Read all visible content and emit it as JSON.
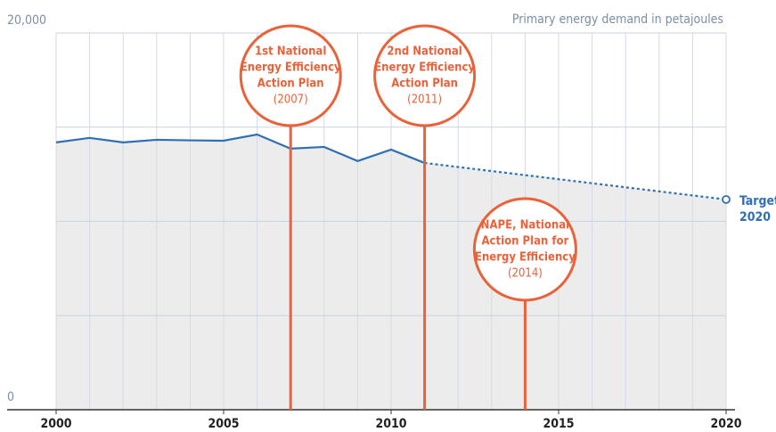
{
  "chart_data": {
    "type": "line",
    "y_label": "Primary energy demand in petajoules",
    "xlim": [
      2000,
      2020
    ],
    "xticks": [
      2000,
      2005,
      2010,
      2015,
      2020
    ],
    "ylim": [
      0,
      20000
    ],
    "yticks": [
      0,
      {
        "value": 20000,
        "label": "20,000"
      }
    ],
    "ygrid": [
      0,
      5000,
      10000,
      15000,
      20000
    ],
    "series": [
      {
        "color": "#2e6fb5",
        "x": [
          2000,
          2001,
          2002,
          2003,
          2004,
          2005,
          2006,
          2007,
          2008,
          2009,
          2010,
          2011
        ],
        "values": [
          14190,
          14430,
          14190,
          14330,
          14300,
          14280,
          14610,
          13860,
          13950,
          13200,
          13810,
          13100
        ]
      },
      {
        "color": "#2e6fb5",
        "dashed": true,
        "x": [
          2011,
          2020
        ],
        "values": [
          13100,
          11160
        ]
      }
    ],
    "target": {
      "label": [
        "Target",
        "2020"
      ],
      "x": 2020,
      "value": 11160
    },
    "annotations": [
      {
        "x": 2007,
        "lines": [
          "1st National",
          "Energy Efficiency",
          "Action Plan"
        ],
        "year": "(2007)"
      },
      {
        "x": 2011,
        "lines": [
          "2nd National",
          "Energy Efficiency",
          "Action Plan"
        ],
        "year": "(2011)"
      },
      {
        "x": 2014,
        "lines": [
          "NAPE, National",
          "Action Plan for",
          "Energy Efficiency"
        ],
        "year": "(2014)"
      }
    ],
    "annotation_color": "#e8623a",
    "fill": "#ececec",
    "grid": true
  }
}
